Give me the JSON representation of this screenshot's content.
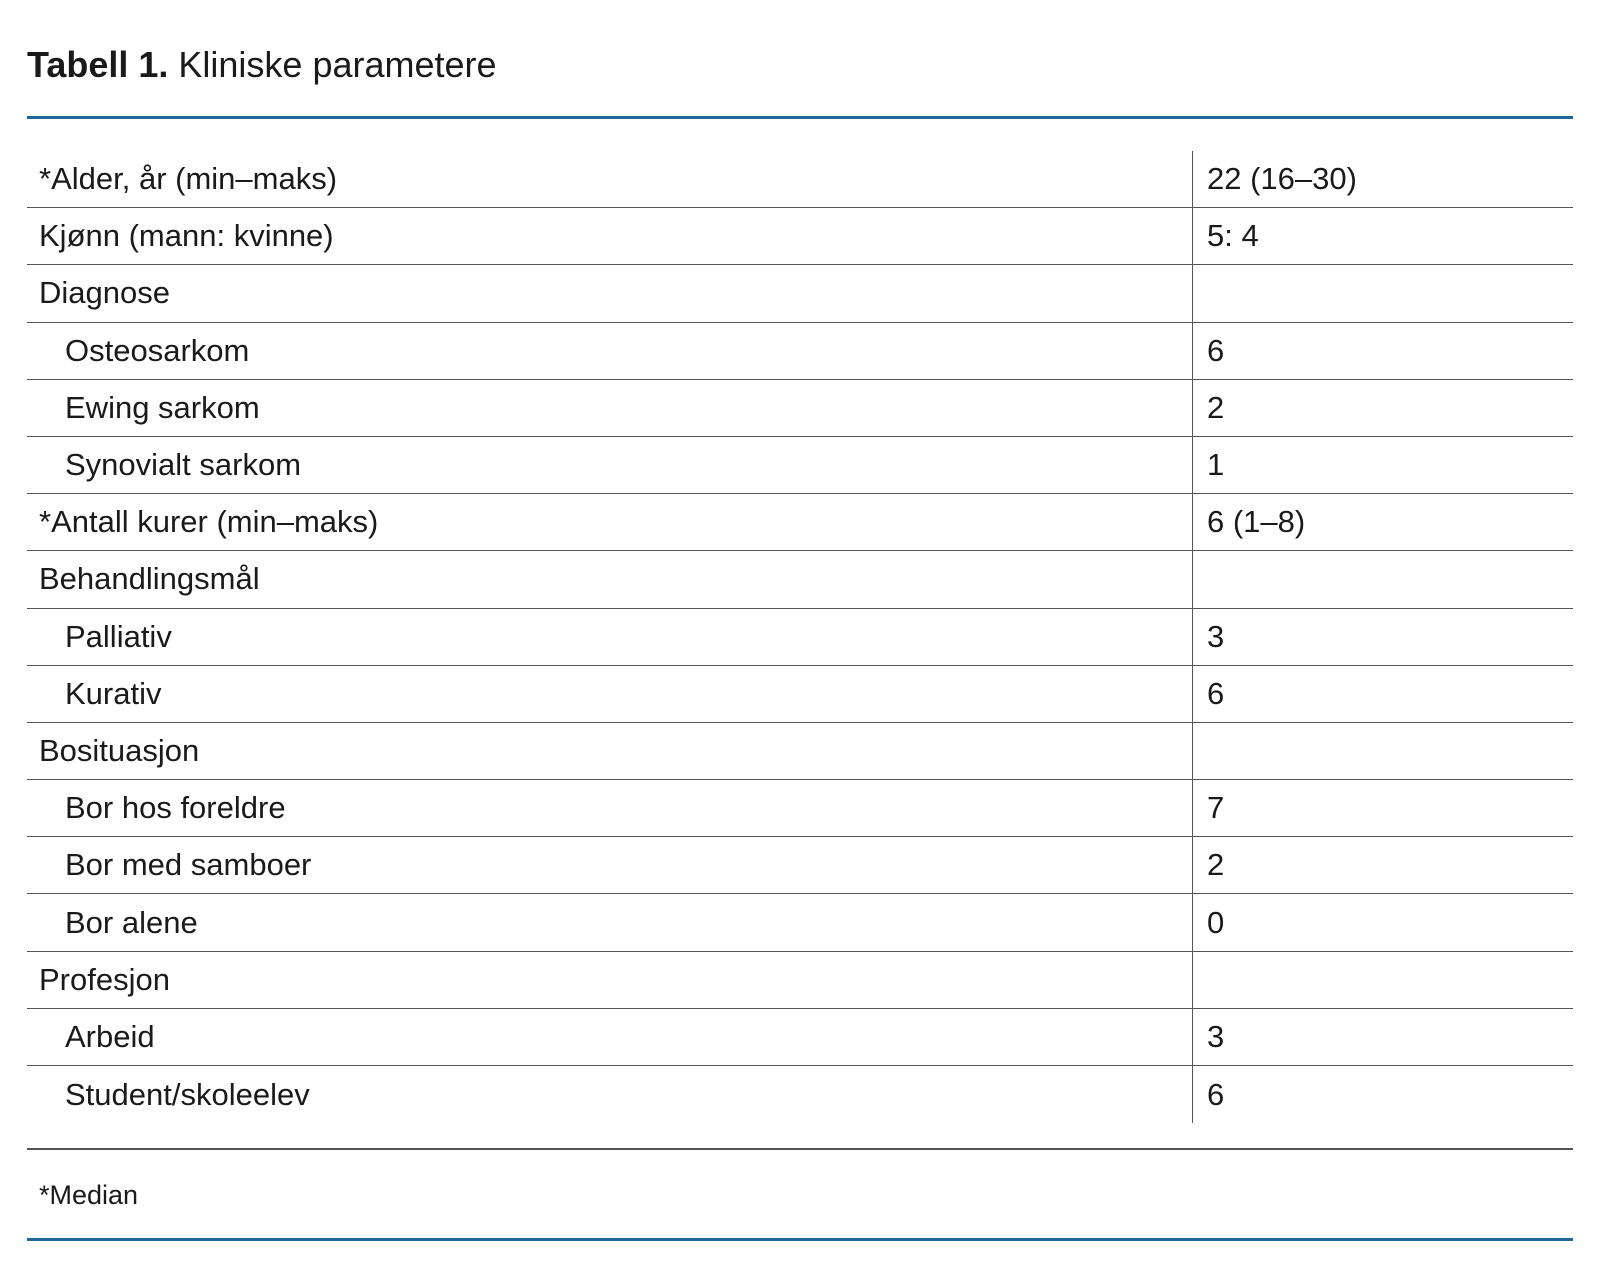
{
  "header": {
    "label": "Tabell 1.",
    "title": "Kliniske parametere"
  },
  "table": {
    "rows": [
      {
        "label": "*Alder, år (min–maks)",
        "value": "22 (16–30)"
      },
      {
        "label": "Kjønn (mann: kvinne)",
        "value": "5: 4"
      },
      {
        "label": "Diagnose"
      },
      {
        "label": "Osteosarkom",
        "value": "6",
        "indent": true
      },
      {
        "label": "Ewing sarkom",
        "value": "2",
        "indent": true
      },
      {
        "label": "Synovialt sarkom",
        "value": "1",
        "indent": true
      },
      {
        "label": "*Antall kurer (min–maks)",
        "value": "6 (1–8)"
      },
      {
        "label": "Behandlingsmål"
      },
      {
        "label": "Palliativ",
        "value": "3",
        "indent": true
      },
      {
        "label": "Kurativ",
        "value": "6",
        "indent": true
      },
      {
        "label": "Bosituasjon"
      },
      {
        "label": "Bor hos foreldre",
        "value": "7",
        "indent": true
      },
      {
        "label": "Bor med samboer",
        "value": "2",
        "indent": true
      },
      {
        "label": "Bor alene",
        "value": "0",
        "indent": true
      },
      {
        "label": "Profesjon"
      },
      {
        "label": "Arbeid",
        "value": "3",
        "indent": true
      },
      {
        "label": "Student/skoleelev",
        "value": "6",
        "indent": true
      }
    ]
  },
  "footnote": "*Median"
}
